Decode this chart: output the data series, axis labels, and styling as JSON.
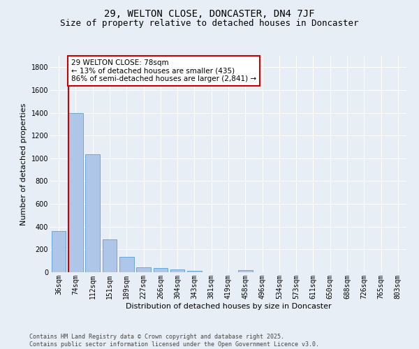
{
  "title_line1": "29, WELTON CLOSE, DONCASTER, DN4 7JF",
  "title_line2": "Size of property relative to detached houses in Doncaster",
  "xlabel": "Distribution of detached houses by size in Doncaster",
  "ylabel": "Number of detached properties",
  "bar_labels": [
    "36sqm",
    "74sqm",
    "112sqm",
    "151sqm",
    "189sqm",
    "227sqm",
    "266sqm",
    "304sqm",
    "343sqm",
    "381sqm",
    "419sqm",
    "458sqm",
    "496sqm",
    "534sqm",
    "573sqm",
    "611sqm",
    "650sqm",
    "688sqm",
    "726sqm",
    "765sqm",
    "803sqm"
  ],
  "bar_values": [
    360,
    1400,
    1035,
    290,
    135,
    43,
    35,
    25,
    15,
    0,
    0,
    18,
    0,
    0,
    0,
    0,
    0,
    0,
    0,
    0,
    0
  ],
  "bar_color": "#aec6e8",
  "bar_edgecolor": "#5a9fd4",
  "vline_x_index": 0.575,
  "annotation_text": "29 WELTON CLOSE: 78sqm\n← 13% of detached houses are smaller (435)\n86% of semi-detached houses are larger (2,841) →",
  "annotation_box_color": "#ffffff",
  "annotation_box_edgecolor": "#cc0000",
  "vline_color": "#cc0000",
  "ylim": [
    0,
    1900
  ],
  "yticks": [
    0,
    200,
    400,
    600,
    800,
    1000,
    1200,
    1400,
    1600,
    1800
  ],
  "bg_color": "#e8eef5",
  "footer_text": "Contains HM Land Registry data © Crown copyright and database right 2025.\nContains public sector information licensed under the Open Government Licence v3.0.",
  "title_fontsize": 10,
  "subtitle_fontsize": 9,
  "axis_label_fontsize": 8,
  "tick_fontsize": 7,
  "annotation_fontsize": 7.5
}
